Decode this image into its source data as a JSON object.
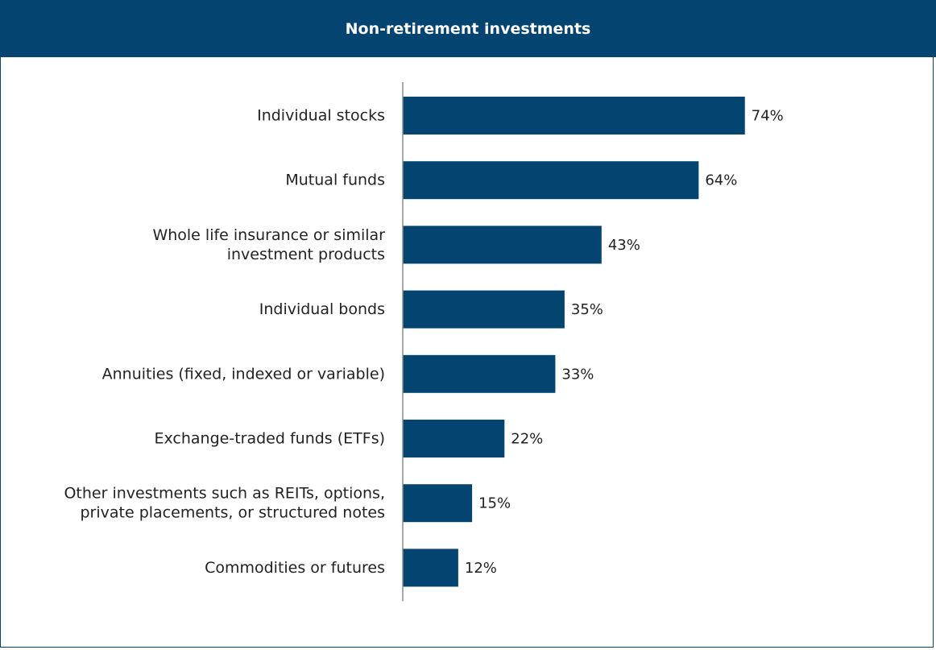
{
  "colors": {
    "accent": "#034471",
    "header_text": "#ffffff"
  },
  "chart_data": {
    "type": "bar",
    "orientation": "horizontal",
    "title": "Non-retirement investments",
    "categories": [
      [
        "Individual stocks"
      ],
      [
        "Mutual funds"
      ],
      [
        "Whole life insurance or similar",
        "investment products"
      ],
      [
        "Individual bonds"
      ],
      [
        "Annuities (fixed, indexed or variable)"
      ],
      [
        "Exchange-traded funds (ETFs)"
      ],
      [
        "Other investments such as REITs, options,",
        "private placements, or structured notes"
      ],
      [
        "Commodities or futures"
      ]
    ],
    "values": [
      74,
      64,
      43,
      35,
      33,
      22,
      15,
      12
    ],
    "value_labels": [
      "74%",
      "64%",
      "43%",
      "35%",
      "33%",
      "22%",
      "15%",
      "12%"
    ],
    "unit": "%",
    "xlim": [
      0,
      100
    ],
    "grid": false,
    "legend": "none"
  }
}
